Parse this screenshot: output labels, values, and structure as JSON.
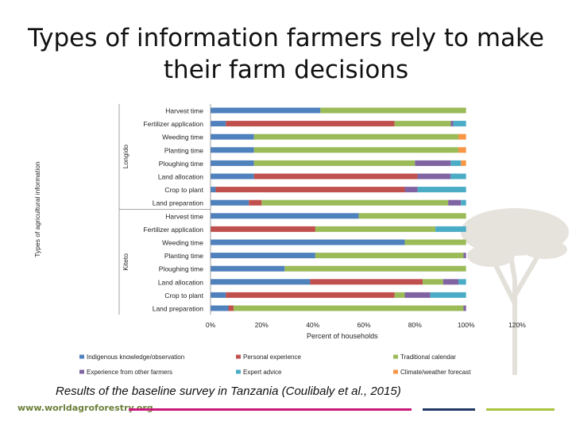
{
  "slide": {
    "title_line1": "Types of information farmers rely to make",
    "title_line2": "their farm decisions",
    "caption": "Results of the baseline survey in Tanzania (Coulibaly et al., 2015)",
    "website": "www.worldagroforestry.org"
  },
  "colors": {
    "Indigenous knowledge/observation": "#4f81bd",
    "Personal experience": "#c0504d",
    "Traditional calendar": "#9bbb59",
    "Experience from other farmers": "#8064a2",
    "Expert advice": "#4bacc6",
    "Climate/weather forecast": "#f79646",
    "stripe_magenta": "#c8197b",
    "stripe_green": "#a6c43d",
    "stripe_navy": "#1f3864",
    "website_text": "#6d7f3a"
  },
  "chart_data": {
    "type": "bar",
    "orientation": "horizontal",
    "stacked": true,
    "ylabel": "Types of agricultural information",
    "xlabel": "Percent of households",
    "xlim": [
      0,
      120
    ],
    "xticks": [
      "0%",
      "20%",
      "40%",
      "60%",
      "80%",
      "100%",
      "120%"
    ],
    "legend_position": "bottom",
    "series_names": [
      "Indigenous knowledge/observation",
      "Personal experience",
      "Traditional calendar",
      "Experience from other farmers",
      "Expert advice",
      "Climate/weather forecast"
    ],
    "groups": [
      {
        "name": "Longido",
        "categories": [
          "Harvest time",
          "Fertilizer application",
          "Weeding time",
          "Planting time",
          "Ploughing time",
          "Land allocation",
          "Crop to plant",
          "Land preparation"
        ],
        "values": [
          [
            43,
            0,
            57,
            0,
            0,
            0
          ],
          [
            6,
            66,
            22,
            1,
            5,
            0
          ],
          [
            17,
            0,
            80,
            0,
            0,
            3
          ],
          [
            17,
            0,
            80,
            0,
            0,
            3
          ],
          [
            17,
            0,
            63,
            14,
            4,
            2
          ],
          [
            17,
            64,
            0,
            13,
            6,
            0
          ],
          [
            2,
            74,
            0,
            5,
            19,
            0
          ],
          [
            15,
            5,
            73,
            5,
            2,
            0
          ]
        ]
      },
      {
        "name": "Kiteto",
        "categories": [
          "Harvest time",
          "Fertilizer application",
          "Weeding time",
          "Planting time",
          "Ploughing time",
          "Land allocation",
          "Crop to plant",
          "Land preparation"
        ],
        "values": [
          [
            58,
            0,
            42,
            0,
            0,
            0
          ],
          [
            0,
            41,
            47,
            0,
            12,
            0
          ],
          [
            76,
            0,
            24,
            0,
            0,
            0
          ],
          [
            41,
            0,
            58,
            1,
            0,
            0
          ],
          [
            29,
            0,
            71,
            0,
            0,
            0
          ],
          [
            39,
            44,
            8,
            6,
            3,
            0
          ],
          [
            6,
            66,
            4,
            10,
            14,
            0
          ],
          [
            7,
            2,
            90,
            1,
            0,
            0
          ]
        ]
      }
    ]
  }
}
